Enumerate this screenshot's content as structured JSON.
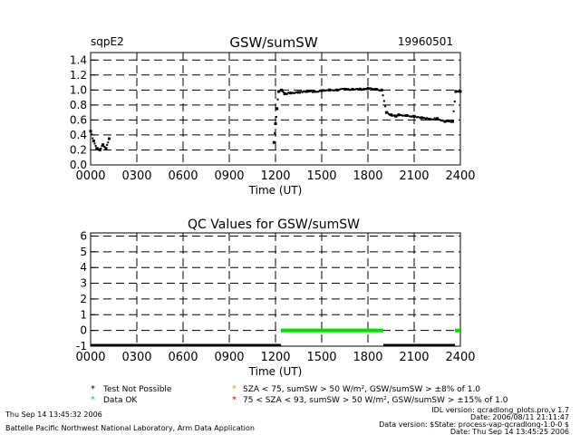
{
  "header": {
    "site": "sqpE2",
    "title": "GSW/sumSW",
    "date": "19960501"
  },
  "chart_data": [
    {
      "type": "scatter",
      "title": "GSW/sumSW",
      "xlabel": "Time (UT)",
      "ylabel": "",
      "xlim": [
        0,
        2400
      ],
      "ylim": [
        0,
        1.5
      ],
      "x_ticks": [
        "0000",
        "0300",
        "0600",
        "0900",
        "1200",
        "1500",
        "1800",
        "2100",
        "2400"
      ],
      "y_ticks": [
        "0.0",
        "0.2",
        "0.4",
        "0.6",
        "0.8",
        "1.0",
        "1.2",
        "1.4"
      ],
      "grid": true,
      "color": "#000000",
      "series": [
        {
          "x": [
            0,
            20,
            40,
            60,
            80,
            100,
            120,
            1190,
            1200,
            1210,
            1220,
            1240,
            1260,
            1300,
            1350,
            1400,
            1450,
            1500,
            1550,
            1600,
            1650,
            1700,
            1750,
            1800,
            1850,
            1890,
            1920,
            1950,
            1980,
            2000,
            2050,
            2100,
            2150,
            2200,
            2250,
            2300,
            2350,
            2370,
            2400
          ],
          "values": [
            0.45,
            0.32,
            0.22,
            0.2,
            0.27,
            0.22,
            0.35,
            0.3,
            0.55,
            0.75,
            0.98,
            1.0,
            0.95,
            0.96,
            0.97,
            0.98,
            0.98,
            0.99,
            1.0,
            1.0,
            1.01,
            1.01,
            1.01,
            1.02,
            1.01,
            1.0,
            0.7,
            0.67,
            0.65,
            0.67,
            0.66,
            0.65,
            0.63,
            0.61,
            0.62,
            0.58,
            0.58,
            0.98,
            0.98
          ]
        }
      ]
    },
    {
      "type": "scatter",
      "title": "QC Values for GSW/sumSW",
      "xlabel": "Time (UT)",
      "ylabel": "",
      "xlim": [
        0,
        2400
      ],
      "ylim": [
        -1,
        6.2
      ],
      "x_ticks": [
        "0000",
        "0300",
        "0600",
        "0900",
        "1200",
        "1500",
        "1800",
        "2100",
        "2400"
      ],
      "y_ticks": [
        "-1",
        "0",
        "1",
        "2",
        "3",
        "4",
        "5",
        "6"
      ],
      "grid": true,
      "green_color": "#00dd00",
      "green_segments": [
        [
          1235,
          1900
        ],
        [
          2365,
          2400
        ]
      ],
      "green_value": 0,
      "black_segments": [
        [
          0,
          1235
        ],
        [
          1900,
          2365
        ]
      ],
      "black_value": -1
    }
  ],
  "legend": {
    "items": [
      {
        "symbol": "*",
        "color": "#000000",
        "label": "Test Not Possible"
      },
      {
        "symbol": "*",
        "color": "#00dd00",
        "label": "Data OK"
      },
      {
        "symbol": "*",
        "color": "#e8a000",
        "label": "SZA < 75, sumSW > 50 W/m², GSW/sumSW > ±8% of 1.0"
      },
      {
        "symbol": "*",
        "color": "#dd0000",
        "label": "75 < SZA < 93, sumSW > 50 W/m², GSW/sumSW > ±15% of 1.0"
      }
    ]
  },
  "footer": {
    "timestamp": "Thu Sep 14 13:45:32 2006",
    "lab": "Battelle Pacific Northwest National Laboratory, Arm Data Application",
    "idl_version": "IDL version: qcradlong_plots.pro,v 1.7",
    "date_line": "Date: 2006/08/11 21:11:47",
    "data_version": "Data version: $State: process-vap-qcradlong-1.0-0 $",
    "date_line2": "Date: Thu Sep 14 13:45:25 2006"
  }
}
